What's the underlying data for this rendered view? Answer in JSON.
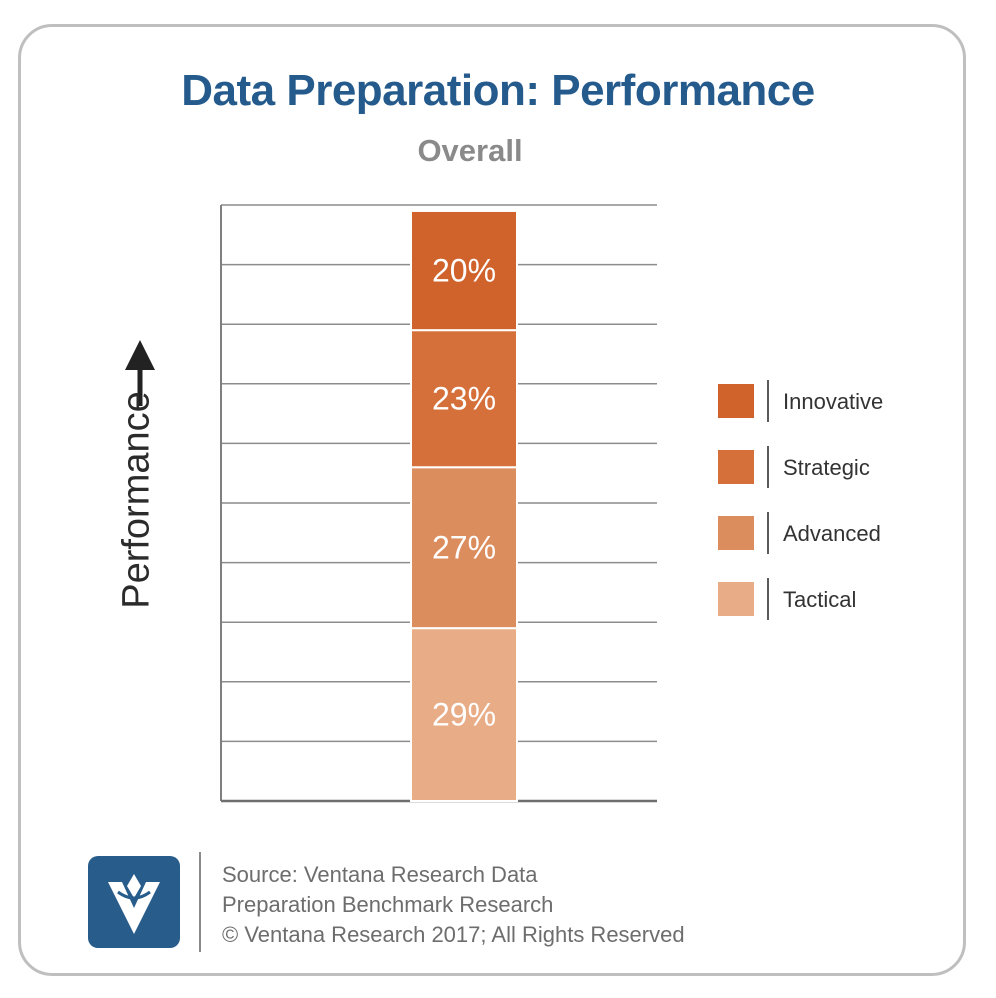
{
  "title": "Data Preparation: Performance",
  "subtitle": "Overall",
  "axis_label": "Performance",
  "colors": {
    "title": "#245a8c",
    "subtitle": "#8a8a8a",
    "innovative": "#d0622b",
    "strategic": "#d6703a",
    "advanced": "#dc8d5e",
    "tactical": "#e8ac86",
    "logo": "#275c8b"
  },
  "legend": [
    {
      "label": "Innovative",
      "color": "#d0622b"
    },
    {
      "label": "Strategic",
      "color": "#d6703a"
    },
    {
      "label": "Advanced",
      "color": "#dc8d5e"
    },
    {
      "label": "Tactical",
      "color": "#e8ac86"
    }
  ],
  "chart_data": {
    "type": "bar",
    "stacked": true,
    "categories": [
      "Overall"
    ],
    "series": [
      {
        "name": "Tactical",
        "values": [
          29
        ],
        "label": "29%",
        "color": "#e8ac86"
      },
      {
        "name": "Advanced",
        "values": [
          27
        ],
        "label": "27%",
        "color": "#dc8d5e"
      },
      {
        "name": "Strategic",
        "values": [
          23
        ],
        "label": "23%",
        "color": "#d6703a"
      },
      {
        "name": "Innovative",
        "values": [
          20
        ],
        "label": "20%",
        "color": "#d0622b"
      }
    ],
    "ylim": [
      0,
      100
    ],
    "grid": true,
    "legend_position": "right"
  },
  "footer": {
    "line1": "Source: Ventana Research Data",
    "line2": "Preparation Benchmark Research",
    "line3": "© Ventana Research 2017; All Rights Reserved"
  },
  "logo_icon": "ventana-v-icon"
}
